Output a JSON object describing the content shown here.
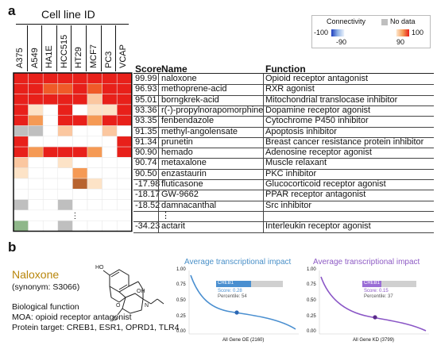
{
  "panel_a": {
    "label": "a",
    "cell_line_title": "Cell line ID",
    "cell_lines": [
      "A375",
      "A549",
      "HA1E",
      "HCC515",
      "HT29",
      "MCF7",
      "PC3",
      "VCAP"
    ],
    "headers": {
      "score": "Score",
      "name": "Name",
      "function": "Function"
    },
    "rows": [
      {
        "score": "99.99",
        "name": "naloxone",
        "function": "Opioid receptor antagonist"
      },
      {
        "score": "96.93",
        "name": "methoprene-acid",
        "function": "RXR agonist"
      },
      {
        "score": "95.01",
        "name": "borngkrek-acid",
        "function": "Mitochondrial translocase inhibitor"
      },
      {
        "score": "93.36",
        "name": "r(-)-propylnorapomorphine",
        "function": "Dopamine receptor agonist"
      },
      {
        "score": "93.35",
        "name": "fenbendazole",
        "function": "Cytochrome P450 inhibitor"
      },
      {
        "score": "91.35",
        "name": "methyl-angolensate",
        "function": "Apoptosis inhibitor"
      },
      {
        "score": "91.34",
        "name": "prunetin",
        "function": "Breast cancer resistance protein inhibitor"
      },
      {
        "score": "90.90",
        "name": "hemado",
        "function": "Adenosine receptor agonist"
      },
      {
        "score": "90.74",
        "name": "metaxalone",
        "function": "Muscle relaxant"
      },
      {
        "score": "90.50",
        "name": "enzastaurin",
        "function": "PKC inhibitor"
      },
      {
        "score": "-17.98",
        "name": "fluticasone",
        "function": "Glucocorticoid receptor agonist"
      },
      {
        "score": "-18.17",
        "name": "GW-9662",
        "function": "PPAR receptor antagonist"
      },
      {
        "score": "-18.52",
        "name": "damnacanthal",
        "function": "Src inhibitor"
      },
      {
        "score": "",
        "name": "⋮",
        "function": ""
      },
      {
        "score": "-34.23",
        "name": "actarit",
        "function": "Interleukin receptor agonist"
      }
    ],
    "heatmap_ellipsis": "⋮",
    "legend": {
      "connectivity_label": "Connectivity",
      "nodata_label": "No data",
      "ticks": [
        "-100",
        "-90",
        "90",
        "100"
      ],
      "colors": {
        "neg_dark": "#1f3fbf",
        "neg_light": "#c9dcf5",
        "pos_light": "#fde3c7",
        "pos_dark": "#e8201a",
        "nodata": "#bfbfbf"
      }
    }
  },
  "panel_b": {
    "label": "b",
    "drug_name": "Naloxone",
    "synonym": "(synonym: S3066)",
    "bio_function_heading": "Biological function",
    "moa": "MOA: opioid receptor antagonist",
    "targets": "Protein target: CREB1, ESR1, OPRD1, TLR4",
    "plots": [
      {
        "title": "Average transcriptional impact",
        "title_color": "#4a90c8",
        "gene": "CREB1",
        "score": "Score: 0.28",
        "percentile": "Percentile: 54",
        "xlabel": "All Gene OE (2160)",
        "yticks": [
          "1.00",
          "0.75",
          "0.50",
          "0.25",
          "0.00"
        ],
        "curve_color": "#4a8fd0",
        "bar_color": "#6aa5e0"
      },
      {
        "title": "Average transcriptional impact",
        "title_color": "#8e5bc4",
        "gene": "CREB1",
        "score": "Score: 0.15",
        "percentile": "Percentile: 37",
        "xlabel": "All Gene KD (3799)",
        "yticks": [
          "1.00",
          "0.75",
          "0.50",
          "0.25",
          "0.00"
        ],
        "curve_color": "#8a56c6",
        "bar_color": "#9a6dd6"
      }
    ]
  }
}
